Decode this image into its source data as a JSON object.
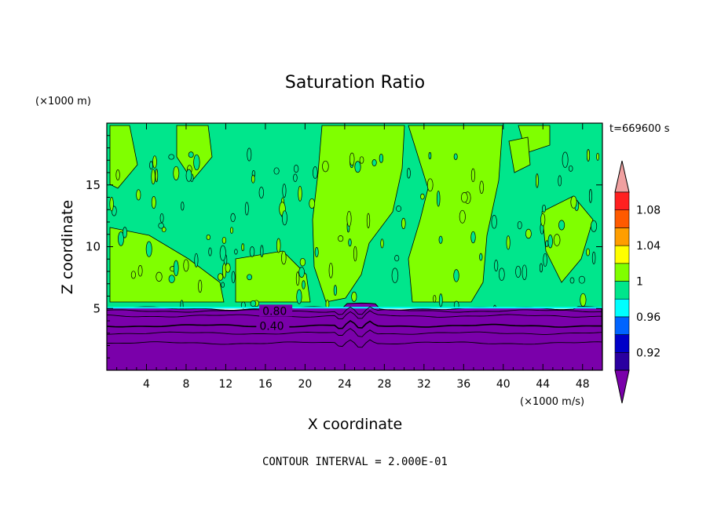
{
  "chart_data": {
    "type": "heatmap",
    "title": "Saturation Ratio",
    "xlabel": "X coordinate",
    "ylabel": "Z coordinate",
    "x_unit": "(×1000 m/s)",
    "y_unit": "(×1000 m)",
    "time_label": "t=669600 s",
    "footer": "CONTOUR INTERVAL = 2.000E-01",
    "xlim": [
      0,
      50
    ],
    "ylim": [
      0,
      20
    ],
    "x_ticks": [
      4,
      8,
      12,
      16,
      20,
      24,
      28,
      32,
      36,
      40,
      44,
      48
    ],
    "y_ticks": [
      5,
      10,
      15
    ],
    "colorbar": {
      "levels": [
        0.88,
        0.9,
        0.92,
        0.94,
        0.96,
        0.98,
        1.0,
        1.02,
        1.04,
        1.06,
        1.08,
        1.1
      ],
      "colors": [
        "#7a00aa",
        "#2a00a0",
        "#0000c8",
        "#0064ff",
        "#00ffff",
        "#00e68c",
        "#80ff00",
        "#ffff00",
        "#ff9e00",
        "#ff5a00",
        "#ff2020",
        "#f0a0a0"
      ],
      "labels": [
        {
          "value": 0.92,
          "text": "0.92"
        },
        {
          "value": 0.96,
          "text": "0.96"
        },
        {
          "value": 1.0,
          "text": "1"
        },
        {
          "value": 1.04,
          "text": "1.04"
        },
        {
          "value": 1.08,
          "text": "1.08"
        }
      ]
    },
    "contour_labels": [
      {
        "text": "0.80",
        "x": 15.7,
        "z": 4.8
      },
      {
        "text": "0.40",
        "x": 15.4,
        "z": 3.6
      }
    ],
    "layers": {
      "subsaturated_top_z": 5.0,
      "colors": {
        "below": "#7a00aa",
        "upper_base": "#00e68c",
        "upper_patch": "#80ff00"
      }
    }
  }
}
